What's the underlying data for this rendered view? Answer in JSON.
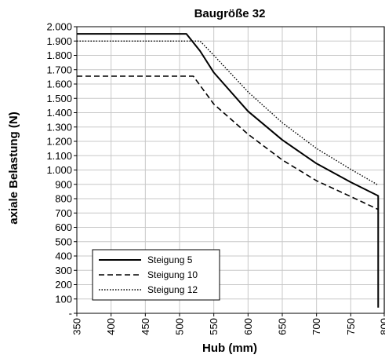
{
  "chart_data": {
    "type": "line",
    "title": "Baugröße 32",
    "xlabel": "Hub (mm)",
    "ylabel": "axiale Belastung (N)",
    "xlim": [
      350,
      800
    ],
    "ylim": [
      0,
      2000
    ],
    "xticks": [
      350,
      400,
      450,
      500,
      550,
      600,
      650,
      700,
      750,
      800
    ],
    "xtick_labels": [
      "350",
      "400",
      "450",
      "500",
      "550",
      "600",
      "650",
      "700",
      "750",
      "800"
    ],
    "yticks": [
      0,
      100,
      200,
      300,
      400,
      500,
      600,
      700,
      800,
      900,
      1000,
      1100,
      1200,
      1300,
      1400,
      1500,
      1600,
      1700,
      1800,
      1900,
      2000
    ],
    "ytick_labels": [
      "-",
      "100",
      "200",
      "300",
      "400",
      "500",
      "600",
      "700",
      "800",
      "900",
      "1.000",
      "1.100",
      "1.200",
      "1.300",
      "1.400",
      "1.500",
      "1.600",
      "1.700",
      "1.800",
      "1.900",
      "2.000"
    ],
    "grid": true,
    "legend_position": "bottom-left",
    "series": [
      {
        "name": "Steigung 5",
        "style": "solid",
        "color": "#000000",
        "points": [
          [
            350,
            1950
          ],
          [
            510,
            1950
          ],
          [
            530,
            1830
          ],
          [
            550,
            1680
          ],
          [
            600,
            1410
          ],
          [
            650,
            1210
          ],
          [
            700,
            1045
          ],
          [
            750,
            915
          ],
          [
            790,
            820
          ],
          [
            790,
            40
          ]
        ]
      },
      {
        "name": "Steigung 10",
        "style": "dashed",
        "color": "#000000",
        "points": [
          [
            350,
            1655
          ],
          [
            520,
            1655
          ],
          [
            550,
            1460
          ],
          [
            600,
            1250
          ],
          [
            650,
            1070
          ],
          [
            700,
            925
          ],
          [
            750,
            815
          ],
          [
            790,
            725
          ]
        ]
      },
      {
        "name": "Steigung 12",
        "style": "dotted",
        "color": "#000000",
        "points": [
          [
            350,
            1900
          ],
          [
            530,
            1900
          ],
          [
            550,
            1800
          ],
          [
            600,
            1545
          ],
          [
            650,
            1330
          ],
          [
            700,
            1150
          ],
          [
            750,
            1005
          ],
          [
            790,
            895
          ]
        ]
      }
    ]
  }
}
